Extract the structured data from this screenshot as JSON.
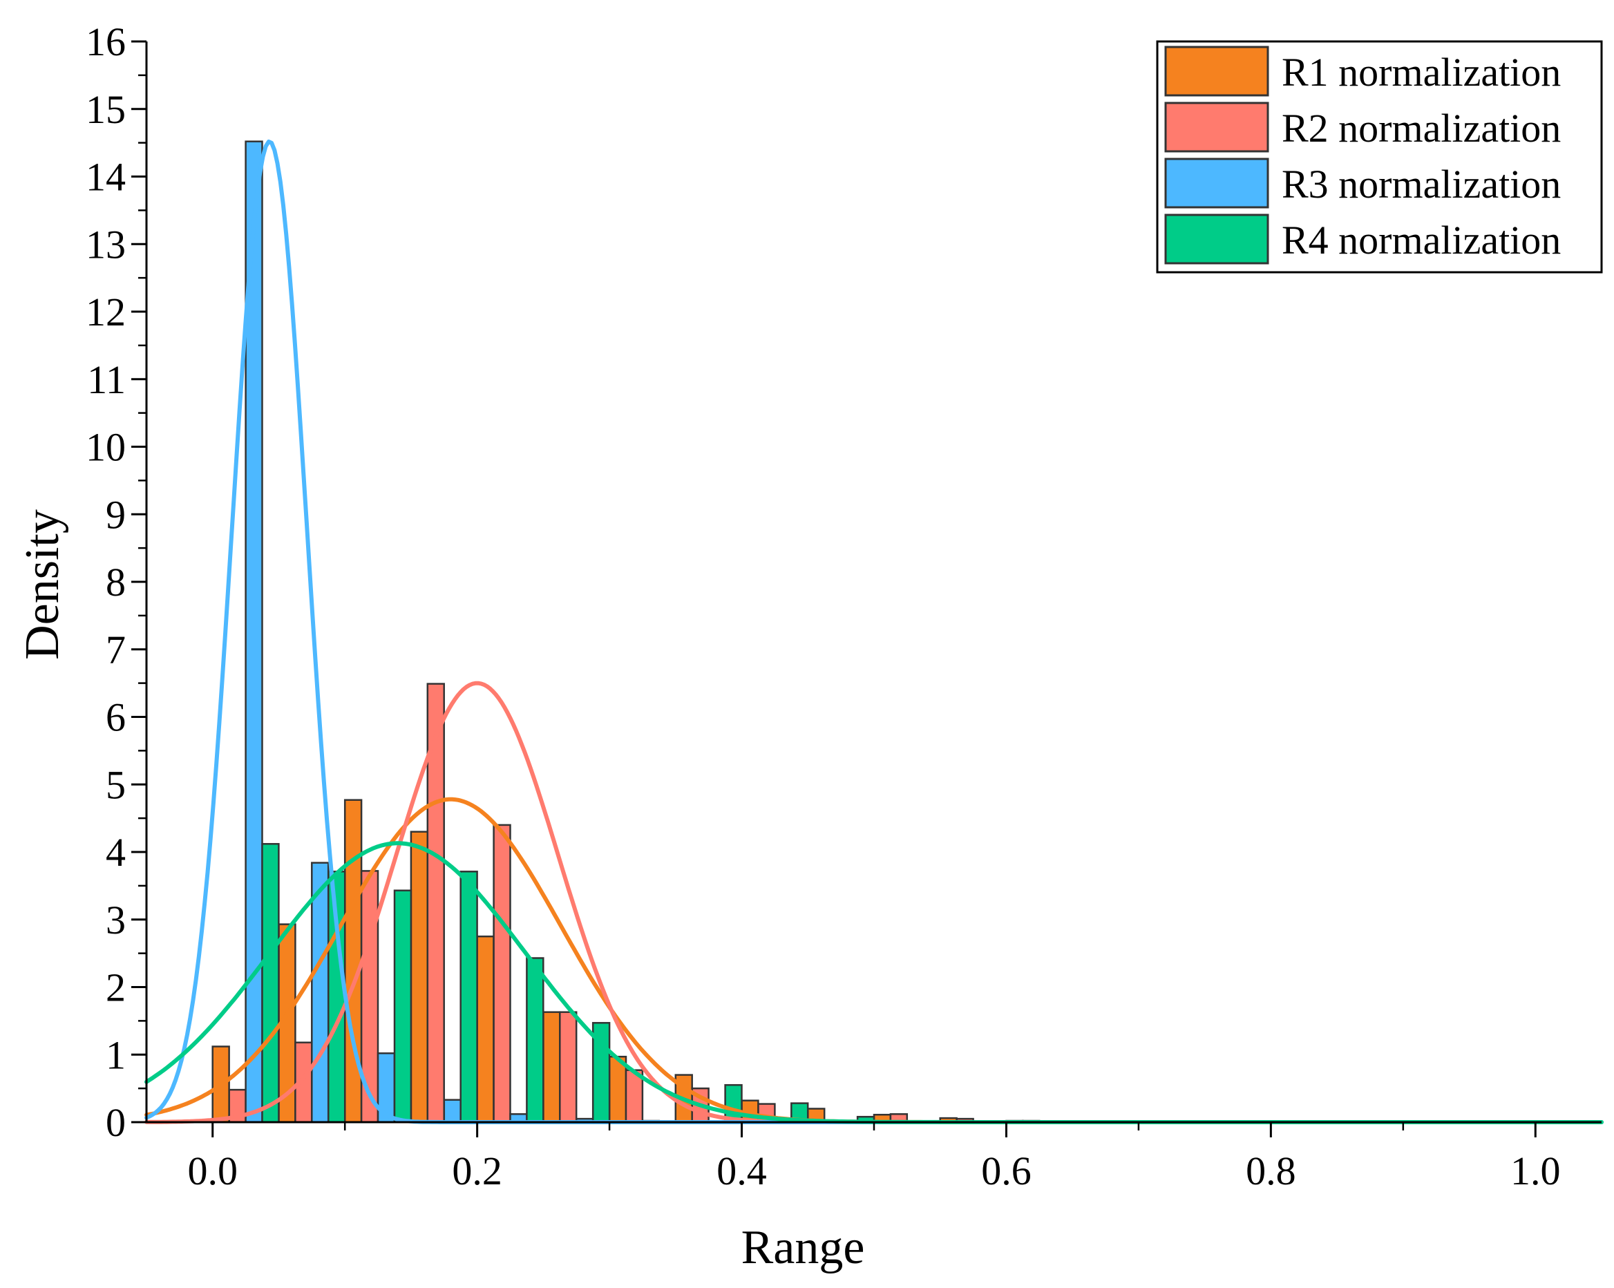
{
  "chart_data": {
    "type": "bar",
    "subtype": "histogram-with-fitted-curves",
    "title": "",
    "xlabel": "Range",
    "ylabel": "Density",
    "xlim": [
      -0.05,
      1.05
    ],
    "ylim": [
      0,
      16
    ],
    "xticks": [
      {
        "value": 0.0,
        "label": "0.0"
      },
      {
        "value": 0.2,
        "label": "0.2"
      },
      {
        "value": 0.4,
        "label": "0.4"
      },
      {
        "value": 0.6,
        "label": "0.6"
      },
      {
        "value": 0.8,
        "label": "0.8"
      },
      {
        "value": 1.0,
        "label": "1.0"
      }
    ],
    "yticks": [
      {
        "value": 0,
        "label": "0"
      },
      {
        "value": 1,
        "label": "1"
      },
      {
        "value": 2,
        "label": "2"
      },
      {
        "value": 3,
        "label": "3"
      },
      {
        "value": 4,
        "label": "4"
      },
      {
        "value": 5,
        "label": "5"
      },
      {
        "value": 6,
        "label": "6"
      },
      {
        "value": 7,
        "label": "7"
      },
      {
        "value": 8,
        "label": "8"
      },
      {
        "value": 9,
        "label": "9"
      },
      {
        "value": 10,
        "label": "10"
      },
      {
        "value": 11,
        "label": "11"
      },
      {
        "value": 12,
        "label": "12"
      },
      {
        "value": 13,
        "label": "13"
      },
      {
        "value": 14,
        "label": "14"
      },
      {
        "value": 15,
        "label": "15"
      },
      {
        "value": 16,
        "label": "16"
      }
    ],
    "bin_width": 0.05,
    "bin_starts": [
      0.0,
      0.05,
      0.1,
      0.15,
      0.2,
      0.25,
      0.3,
      0.35,
      0.4,
      0.45,
      0.5,
      0.55,
      0.6,
      0.65,
      0.7,
      0.75,
      0.8,
      0.85,
      0.9,
      0.95
    ],
    "legend_position": "top-right",
    "series": [
      {
        "name": "R1 normalization",
        "color": "#F5821F",
        "values": [
          1.12,
          2.93,
          4.77,
          4.3,
          2.75,
          1.63,
          0.97,
          0.7,
          0.32,
          0.2,
          0.11,
          0.06,
          0.02,
          0.01,
          0.01,
          0.0,
          0.0,
          0.0,
          0.0,
          0.01
        ],
        "fit": {
          "mean": 0.18,
          "peak": 4.78,
          "sd": 0.0835
        }
      },
      {
        "name": "R2 normalization",
        "color": "#FF7B6E",
        "values": [
          0.48,
          1.18,
          3.72,
          6.49,
          4.4,
          1.63,
          0.77,
          0.5,
          0.27,
          0.0,
          0.12,
          0.05,
          0.02,
          0.0,
          0.0,
          0.0,
          0.0,
          0.0,
          0.0,
          0.0
        ],
        "fit": {
          "mean": 0.2,
          "peak": 6.5,
          "sd": 0.0614
        }
      },
      {
        "name": "R3 normalization",
        "color": "#4DB8FF",
        "values": [
          14.52,
          3.84,
          1.02,
          0.33,
          0.12,
          0.05,
          0.02,
          0.0,
          0.0,
          0.0,
          0.0,
          0.0,
          0.0,
          0.0,
          0.0,
          0.0,
          0.0,
          0.0,
          0.0,
          0.0
        ],
        "fit": {
          "mean": 0.043,
          "peak": 14.52,
          "sd": 0.0283
        }
      },
      {
        "name": "R4 normalization",
        "color": "#00CC88",
        "values": [
          4.12,
          3.71,
          3.43,
          3.71,
          2.43,
          1.47,
          0.0,
          0.55,
          0.28,
          0.08,
          0.0,
          0.0,
          0.0,
          0.0,
          0.0,
          0.0,
          0.0,
          0.0,
          0.0,
          0.0
        ],
        "fit": {
          "mean": 0.14,
          "peak": 4.13,
          "sd": 0.0966
        }
      }
    ]
  }
}
